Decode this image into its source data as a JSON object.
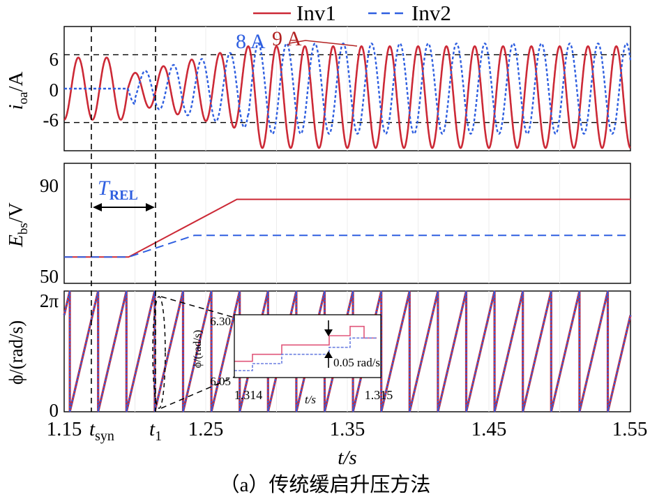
{
  "legend": {
    "inv1": "Inv1",
    "inv2": "Inv2",
    "inv1_color": "#cc2936",
    "inv2_color": "#2f5fe0"
  },
  "caption": "（a）传统缓启升压方法",
  "xaxis": {
    "label": "t/s",
    "ticks": [
      "1.15",
      "1.25",
      "1.35",
      "1.45",
      "1.55"
    ],
    "range": [
      1.15,
      1.55
    ],
    "t_syn_label": "t",
    "t_syn_sub": "syn",
    "t1_label": "t",
    "t1_sub": "1"
  },
  "chart_data": [
    {
      "type": "line",
      "panel": "current",
      "ylabel_main": "i",
      "ylabel_sub": "oa",
      "ylabel_unit": "/A",
      "ylim": [
        -11,
        11
      ],
      "yticks": [
        "6",
        "0",
        "-6"
      ],
      "reference_lines": [
        6,
        -6
      ],
      "x_range": [
        1.15,
        1.55
      ],
      "series": [
        {
          "name": "Inv1",
          "style": "solid",
          "color": "#cc2936",
          "segments": [
            {
              "t_start": 1.15,
              "t_end": 1.195,
              "offset": 0,
              "amplitude": 5.5
            },
            {
              "t_start": 1.195,
              "t_end": 1.28,
              "offset": 0,
              "amplitude": "ramp 2.5 to 7.5"
            },
            {
              "t_start": 1.28,
              "t_end": 1.55,
              "offset": -1.5,
              "amplitude": 9
            }
          ]
        },
        {
          "name": "Inv2",
          "style": "dashed",
          "color": "#2f5fe0",
          "segments": [
            {
              "t_start": 1.15,
              "t_end": 1.195,
              "offset": 0,
              "amplitude": 0
            },
            {
              "t_start": 1.195,
              "t_end": 1.28,
              "offset": 0,
              "amplitude": "ramp 2.5 to 7"
            },
            {
              "t_start": 1.28,
              "t_end": 1.55,
              "offset": 0,
              "amplitude": 8
            }
          ]
        }
      ],
      "annotations": [
        {
          "text": "8 A",
          "color": "#2f5fe0"
        },
        {
          "text": "9 A",
          "color": "#b22222"
        }
      ]
    },
    {
      "type": "line",
      "panel": "voltage",
      "ylabel_main": "E",
      "ylabel_sub": "bs",
      "ylabel_unit": "/V",
      "ylim": [
        45,
        95
      ],
      "yticks": [
        "90",
        "50"
      ],
      "series": [
        {
          "name": "Inv1",
          "style": "solid",
          "color": "#cc2936",
          "x": [
            1.15,
            1.1955,
            1.272,
            1.55
          ],
          "y": [
            56,
            56,
            80,
            80
          ]
        },
        {
          "name": "Inv2",
          "style": "dashed",
          "color": "#2f5fe0",
          "x": [
            1.15,
            1.1955,
            1.242,
            1.55
          ],
          "y": [
            56,
            56,
            65,
            65
          ]
        }
      ],
      "annotations": [
        {
          "text": "T",
          "sub": "REL",
          "color": "#2f5fe0"
        }
      ]
    },
    {
      "type": "line",
      "panel": "phase",
      "ylabel": "ϕ/(rad/s)",
      "ylim": [
        0,
        6.2832
      ],
      "yticks": [
        "2π",
        "0"
      ],
      "series": [
        {
          "name": "Inv1",
          "style": "solid",
          "color": "#cc2936",
          "waveform": "sawtooth 0 to 2π, period 0.02 s"
        },
        {
          "name": "Inv2",
          "style": "dashed",
          "color": "#2f5fe0",
          "waveform": "sawtooth 0 to 2π, period 0.02 s"
        }
      ],
      "inset": {
        "xlabel": "t/s",
        "ylabel": "ϕ/(rad/s)",
        "xticks": [
          "1.314",
          "1.315"
        ],
        "yticks": [
          "6.30",
          "6.05"
        ],
        "annotation": "0.05 rad/s",
        "series": [
          {
            "name": "Inv1",
            "style": "solid",
            "color": "#e0567a",
            "x": [
              1.314,
              1.31413,
              1.31413,
              1.31434,
              1.31434,
              1.31468,
              1.31468,
              1.31483,
              1.31483,
              1.31493,
              1.31493,
              1.31502
            ],
            "y": [
              6.1,
              6.1,
              6.13,
              6.13,
              6.17,
              6.17,
              6.21,
              6.21,
              6.25,
              6.25,
              6.2,
              6.2
            ]
          },
          {
            "name": "Inv2",
            "style": "dashed",
            "color": "#6b7fe0",
            "x": [
              1.314,
              1.31413,
              1.31413,
              1.31434,
              1.31434,
              1.31468,
              1.31468,
              1.31483,
              1.31483,
              1.31493,
              1.31493,
              1.31502
            ],
            "y": [
              6.06,
              6.06,
              6.09,
              6.09,
              6.13,
              6.13,
              6.16,
              6.16,
              6.2,
              6.2,
              6.2,
              6.2
            ]
          }
        ]
      }
    }
  ]
}
